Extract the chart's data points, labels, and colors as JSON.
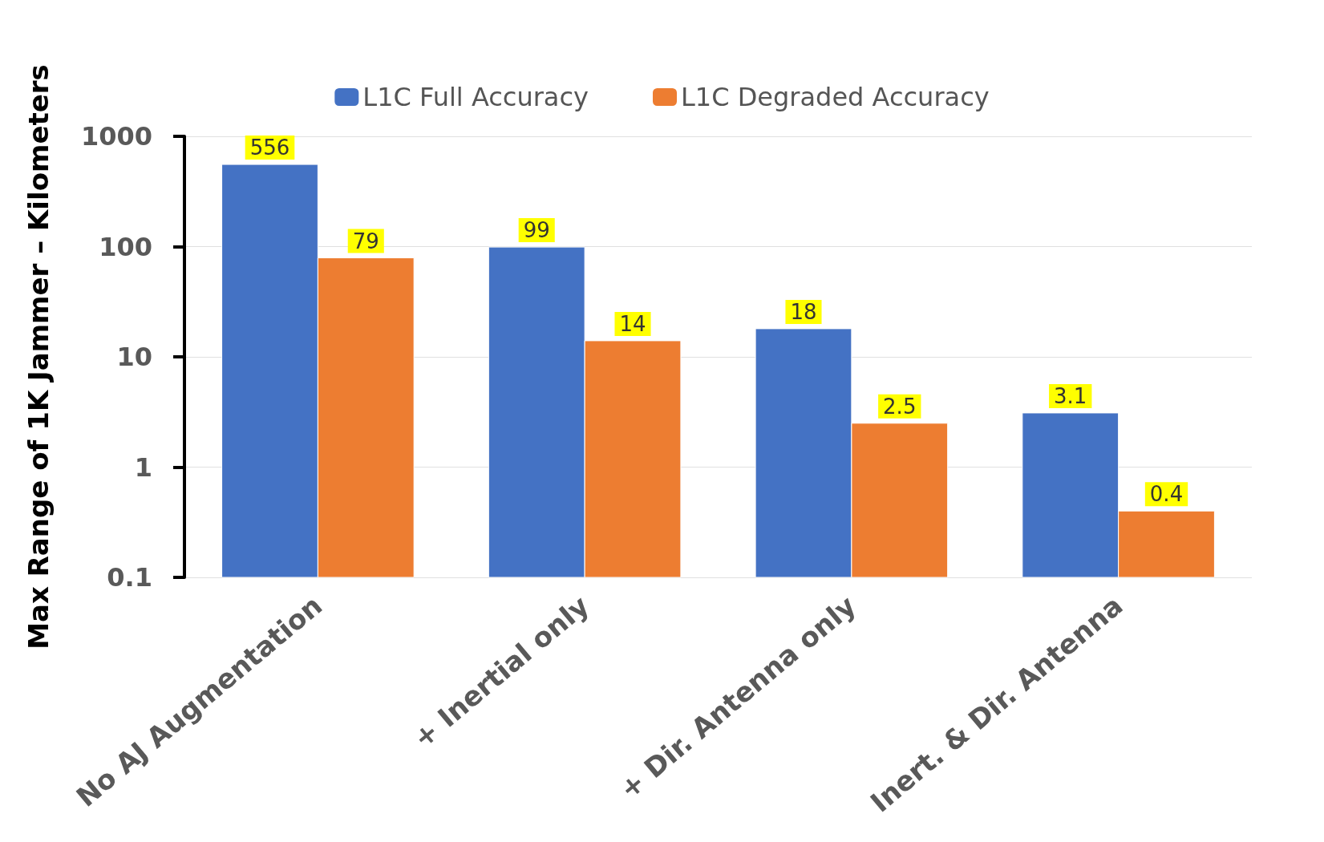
{
  "chart_data": {
    "type": "bar",
    "ylabel": "Max Range of 1K Jammer – Kilometers",
    "categories": [
      "No AJ Augmentation",
      "+ Inertial only",
      "+ Dir. Antenna only",
      "Inert. & Dir. Antenna"
    ],
    "series": [
      {
        "name": "L1C Full Accuracy",
        "color": "#4472c4",
        "values": [
          556,
          99,
          18,
          3.1
        ]
      },
      {
        "name": "L1C Degraded Accuracy",
        "color": "#ed7d31",
        "values": [
          79,
          14,
          2.5,
          0.4
        ]
      }
    ],
    "log": true,
    "ylim": [
      0.1,
      1000
    ],
    "yticks": [
      0.1,
      1,
      10,
      100,
      1000
    ],
    "data_labels": true,
    "grid": "y",
    "legend": "top"
  }
}
